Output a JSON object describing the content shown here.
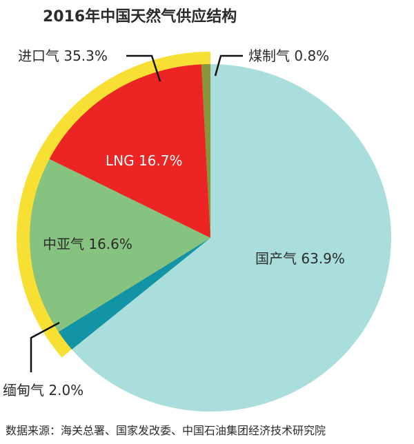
{
  "chart_data": {
    "type": "pie",
    "title": "2016年中国天然气供应结构",
    "source": "数据来源：海关总署、国家发改委、中国石油集团经济技术研究院",
    "slices": [
      {
        "key": "domestic",
        "label": "国产气 63.9%",
        "value": 63.9,
        "color": "#a9dedc"
      },
      {
        "key": "myanmar",
        "label": "缅甸气 2.0%",
        "value": 2.0,
        "color": "#1394a6"
      },
      {
        "key": "central-asia",
        "label": "中亚气 16.6%",
        "value": 16.6,
        "color": "#86c381"
      },
      {
        "key": "lng",
        "label": "LNG 16.7%",
        "value": 16.7,
        "color": "#ec2424"
      },
      {
        "key": "coal-gas",
        "label": "煤制气 0.8%",
        "value": 0.8,
        "color": "#8a9438"
      }
    ],
    "import_ring": {
      "label": "进口气 35.3%",
      "value": 35.3,
      "color": "#f7e033"
    }
  }
}
